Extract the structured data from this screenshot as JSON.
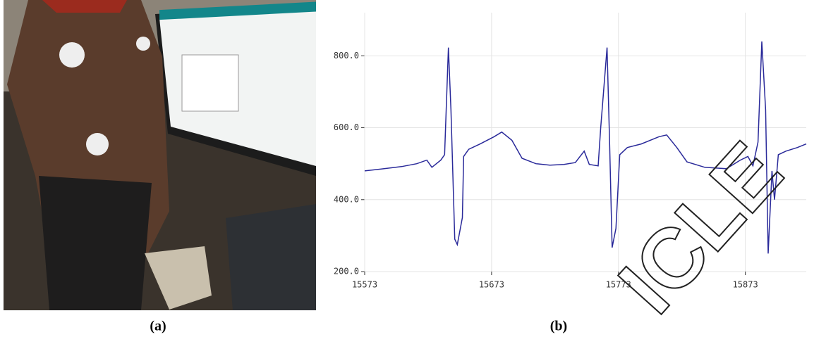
{
  "captions": [
    "(a)",
    "(b)"
  ],
  "watermark": "ICLE",
  "chart_data": {
    "type": "line",
    "x": [
      15573,
      15586,
      15602,
      15614,
      15622,
      15626,
      15633,
      15636,
      15639,
      15641,
      15644,
      15646,
      15650,
      15651,
      15655,
      15664,
      15675,
      15681,
      15689,
      15697,
      15708,
      15719,
      15730,
      15739,
      15746,
      15750,
      15757,
      15759,
      15764,
      15766,
      15768,
      15771,
      15774,
      15780,
      15791,
      15805,
      15811,
      15819,
      15827,
      15841,
      15858,
      15869,
      15875,
      15879,
      15883,
      15886,
      15889,
      15891,
      15894,
      15896,
      15899,
      15905,
      15914,
      15921
    ],
    "values": [
      480,
      485,
      492,
      500,
      510,
      490,
      510,
      525,
      823,
      650,
      290,
      275,
      350,
      520,
      540,
      555,
      575,
      588,
      565,
      515,
      500,
      496,
      498,
      503,
      535,
      498,
      494,
      600,
      823,
      560,
      267,
      320,
      525,
      545,
      555,
      575,
      580,
      545,
      505,
      490,
      486,
      510,
      520,
      494,
      560,
      840,
      650,
      250,
      480,
      400,
      525,
      535,
      545,
      555
    ],
    "color": "#2a2a9a",
    "xlim": [
      15573,
      15921
    ],
    "ylim": [
      200,
      920
    ],
    "xticks": [
      15573,
      15673,
      15773,
      15873
    ],
    "yticks": [
      {
        "value": 200,
        "label": "200.0"
      },
      {
        "value": 400,
        "label": "400.0"
      },
      {
        "value": 600,
        "label": "600.0"
      },
      {
        "value": 800,
        "label": "800.0"
      }
    ],
    "grid": true
  }
}
